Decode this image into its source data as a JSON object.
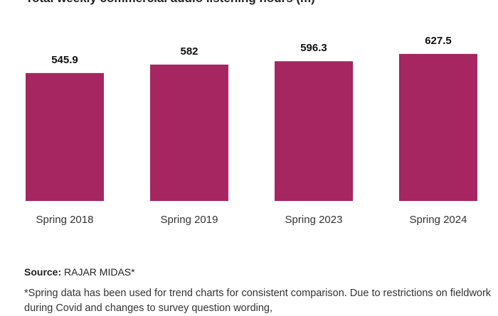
{
  "chart_data": {
    "type": "bar",
    "title": "Total weekly commercial audio listening hours (m)",
    "categories": [
      "Spring 2018",
      "Spring 2019",
      "Spring 2023",
      "Spring 2024"
    ],
    "values": [
      545.9,
      582,
      596.3,
      627.5
    ],
    "value_labels": [
      "545.9",
      "582",
      "596.3",
      "627.5"
    ],
    "ylim": [
      0,
      700
    ],
    "grid": false,
    "bar_color": "#a52660"
  },
  "footer": {
    "source_label": "Source:",
    "source_value": "RAJAR MIDAS*",
    "note": "*Spring data has been used for trend charts for consistent comparison. Due to restrictions on fieldwork during Covid and changes to survey question wording,"
  }
}
